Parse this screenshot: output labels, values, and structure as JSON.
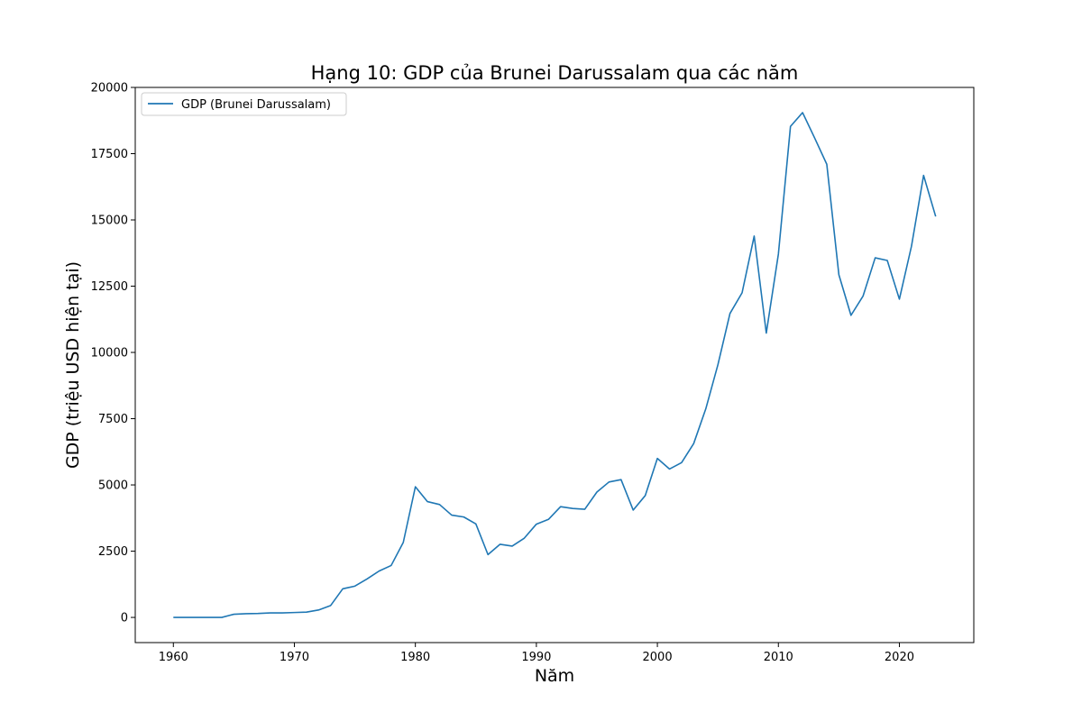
{
  "chart_data": {
    "type": "line",
    "title": "Hạng 10: GDP của Brunei Darussalam qua các năm",
    "xlabel": "Năm",
    "ylabel": "GDP (triệu USD hiện tại)",
    "xlim": [
      1956.85,
      2026.15
    ],
    "ylim": [
      -950,
      20000
    ],
    "x_ticks": [
      1960,
      1970,
      1980,
      1990,
      2000,
      2010,
      2020
    ],
    "y_ticks": [
      0,
      2500,
      5000,
      7500,
      10000,
      12500,
      15000,
      17500,
      20000
    ],
    "grid": false,
    "legend": {
      "position": "upper-left"
    },
    "series": [
      {
        "name": "GDP (Brunei Darussalam)",
        "color": "#1f77b4",
        "x": [
          1960,
          1961,
          1962,
          1963,
          1964,
          1965,
          1966,
          1967,
          1968,
          1969,
          1970,
          1971,
          1972,
          1973,
          1974,
          1975,
          1976,
          1977,
          1978,
          1979,
          1980,
          1981,
          1982,
          1983,
          1984,
          1985,
          1986,
          1987,
          1988,
          1989,
          1990,
          1991,
          1992,
          1993,
          1994,
          1995,
          1996,
          1997,
          1998,
          1999,
          2000,
          2001,
          2002,
          2003,
          2004,
          2005,
          2006,
          2007,
          2008,
          2009,
          2010,
          2011,
          2012,
          2013,
          2014,
          2015,
          2016,
          2017,
          2018,
          2019,
          2020,
          2021,
          2022,
          2023
        ],
        "values": [
          0,
          0,
          0,
          0,
          0,
          120,
          140,
          150,
          170,
          170,
          185,
          200,
          280,
          450,
          1080,
          1180,
          1450,
          1750,
          1960,
          2830,
          4930,
          4370,
          4260,
          3860,
          3790,
          3530,
          2370,
          2760,
          2690,
          2990,
          3520,
          3700,
          4180,
          4110,
          4080,
          4730,
          5110,
          5200,
          4050,
          4600,
          6000,
          5600,
          5840,
          6560,
          7870,
          9530,
          11470,
          12250,
          14390,
          10730,
          13710,
          18530,
          19050,
          18090,
          17100,
          12930,
          11400,
          12130,
          13570,
          13470,
          12010,
          14010,
          16680,
          15130
        ]
      }
    ]
  }
}
